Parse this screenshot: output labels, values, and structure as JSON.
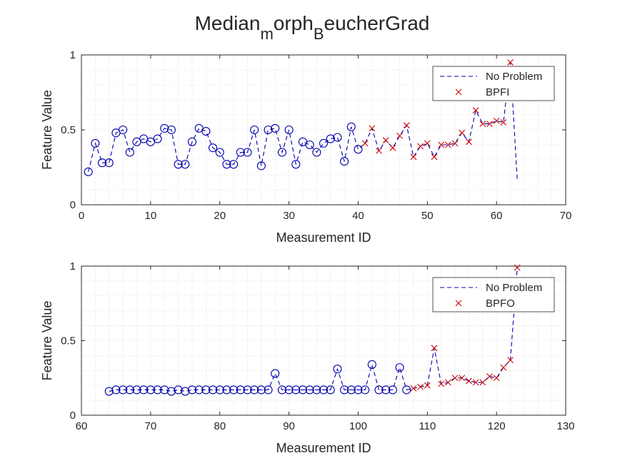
{
  "figure": {
    "title_parts": [
      "Median",
      "m",
      "orph",
      "B",
      "eucherGrad"
    ]
  },
  "chart_data": [
    {
      "type": "scatter",
      "xlabel": "Measurement ID",
      "ylabel": "Feature Value",
      "xlim": [
        0,
        70
      ],
      "ylim": [
        0,
        1
      ],
      "xticks": [
        0,
        10,
        20,
        30,
        40,
        50,
        60,
        70
      ],
      "yticks": [
        0,
        0.5,
        1
      ],
      "grid": "minor-dotted",
      "legend": {
        "placement": "top-right",
        "entries": [
          "No Problem",
          "BPFI"
        ]
      },
      "series": [
        {
          "name": "No Problem",
          "line": "dashed",
          "marker": "circle",
          "color": "#0000aa",
          "x": [
            1,
            2,
            3,
            4,
            5,
            6,
            7,
            8,
            9,
            10,
            11,
            12,
            13,
            14,
            15,
            16,
            17,
            18,
            19,
            20,
            21,
            22,
            23,
            24,
            25,
            26,
            27,
            28,
            29,
            30,
            31,
            32,
            33,
            34,
            35,
            36,
            37,
            38,
            39,
            40,
            41,
            42,
            43,
            44,
            45,
            46,
            47,
            48,
            49,
            50,
            51,
            52,
            53,
            54,
            55,
            56,
            57,
            58,
            59,
            60,
            61,
            62,
            63
          ],
          "y": [
            0.22,
            0.41,
            0.28,
            0.28,
            0.48,
            0.5,
            0.35,
            0.42,
            0.44,
            0.42,
            0.44,
            0.51,
            0.5,
            0.27,
            0.27,
            0.42,
            0.51,
            0.49,
            0.38,
            0.35,
            0.27,
            0.27,
            0.35,
            0.35,
            0.5,
            0.26,
            0.5,
            0.51,
            0.35,
            0.5,
            0.27,
            0.42,
            0.4,
            0.35,
            0.41,
            0.44,
            0.45,
            0.29,
            0.52,
            0.37,
            0.41,
            0.51,
            0.36,
            0.43,
            0.38,
            0.46,
            0.53,
            0.32,
            0.39,
            0.41,
            0.32,
            0.4,
            0.4,
            0.41,
            0.48,
            0.42,
            0.63,
            0.54,
            0.54,
            0.56,
            0.55,
            0.95,
            0.16
          ],
          "marker_count": 40
        },
        {
          "name": "BPFI",
          "marker": "x",
          "color": "#cc0000",
          "x": [
            41,
            42,
            43,
            44,
            45,
            46,
            47,
            48,
            49,
            50,
            51,
            52,
            53,
            54,
            55,
            56,
            57,
            58,
            59,
            60,
            61,
            62
          ],
          "y": [
            0.41,
            0.51,
            0.36,
            0.43,
            0.38,
            0.46,
            0.53,
            0.32,
            0.39,
            0.41,
            0.32,
            0.4,
            0.4,
            0.41,
            0.48,
            0.42,
            0.63,
            0.54,
            0.54,
            0.56,
            0.55,
            0.95
          ]
        }
      ]
    },
    {
      "type": "scatter",
      "xlabel": "Measurement ID",
      "ylabel": "Feature Value",
      "xlim": [
        60,
        130
      ],
      "ylim": [
        0,
        1
      ],
      "xticks": [
        60,
        70,
        80,
        90,
        100,
        110,
        120,
        130
      ],
      "yticks": [
        0,
        0.5,
        1
      ],
      "grid": "minor-dotted",
      "legend": {
        "placement": "top-right",
        "entries": [
          "No Problem",
          "BPFO"
        ]
      },
      "series": [
        {
          "name": "No Problem",
          "line": "dashed",
          "marker": "circle",
          "color": "#0000aa",
          "x": [
            64,
            65,
            66,
            67,
            68,
            69,
            70,
            71,
            72,
            73,
            74,
            75,
            76,
            77,
            78,
            79,
            80,
            81,
            82,
            83,
            84,
            85,
            86,
            87,
            88,
            89,
            90,
            91,
            92,
            93,
            94,
            95,
            96,
            97,
            98,
            99,
            100,
            101,
            102,
            103,
            104,
            105,
            106,
            107,
            108,
            109,
            110,
            111,
            112,
            113,
            114,
            115,
            116,
            117,
            118,
            119,
            120,
            121,
            122,
            123
          ],
          "y": [
            0.16,
            0.17,
            0.17,
            0.17,
            0.17,
            0.17,
            0.17,
            0.17,
            0.17,
            0.16,
            0.17,
            0.16,
            0.17,
            0.17,
            0.17,
            0.17,
            0.17,
            0.17,
            0.17,
            0.17,
            0.17,
            0.17,
            0.17,
            0.17,
            0.28,
            0.17,
            0.17,
            0.17,
            0.17,
            0.17,
            0.17,
            0.17,
            0.17,
            0.31,
            0.17,
            0.17,
            0.17,
            0.17,
            0.34,
            0.17,
            0.17,
            0.17,
            0.32,
            0.17,
            0.18,
            0.19,
            0.2,
            0.45,
            0.21,
            0.22,
            0.25,
            0.25,
            0.23,
            0.22,
            0.22,
            0.26,
            0.25,
            0.32,
            0.37,
            0.99
          ],
          "marker_count": 44
        },
        {
          "name": "BPFO",
          "marker": "x",
          "color": "#cc0000",
          "x": [
            108,
            109,
            110,
            111,
            112,
            113,
            114,
            115,
            116,
            117,
            118,
            119,
            120,
            121,
            122,
            123
          ],
          "y": [
            0.18,
            0.19,
            0.2,
            0.45,
            0.21,
            0.22,
            0.25,
            0.25,
            0.23,
            0.22,
            0.22,
            0.26,
            0.25,
            0.32,
            0.37,
            0.99
          ]
        }
      ]
    }
  ]
}
